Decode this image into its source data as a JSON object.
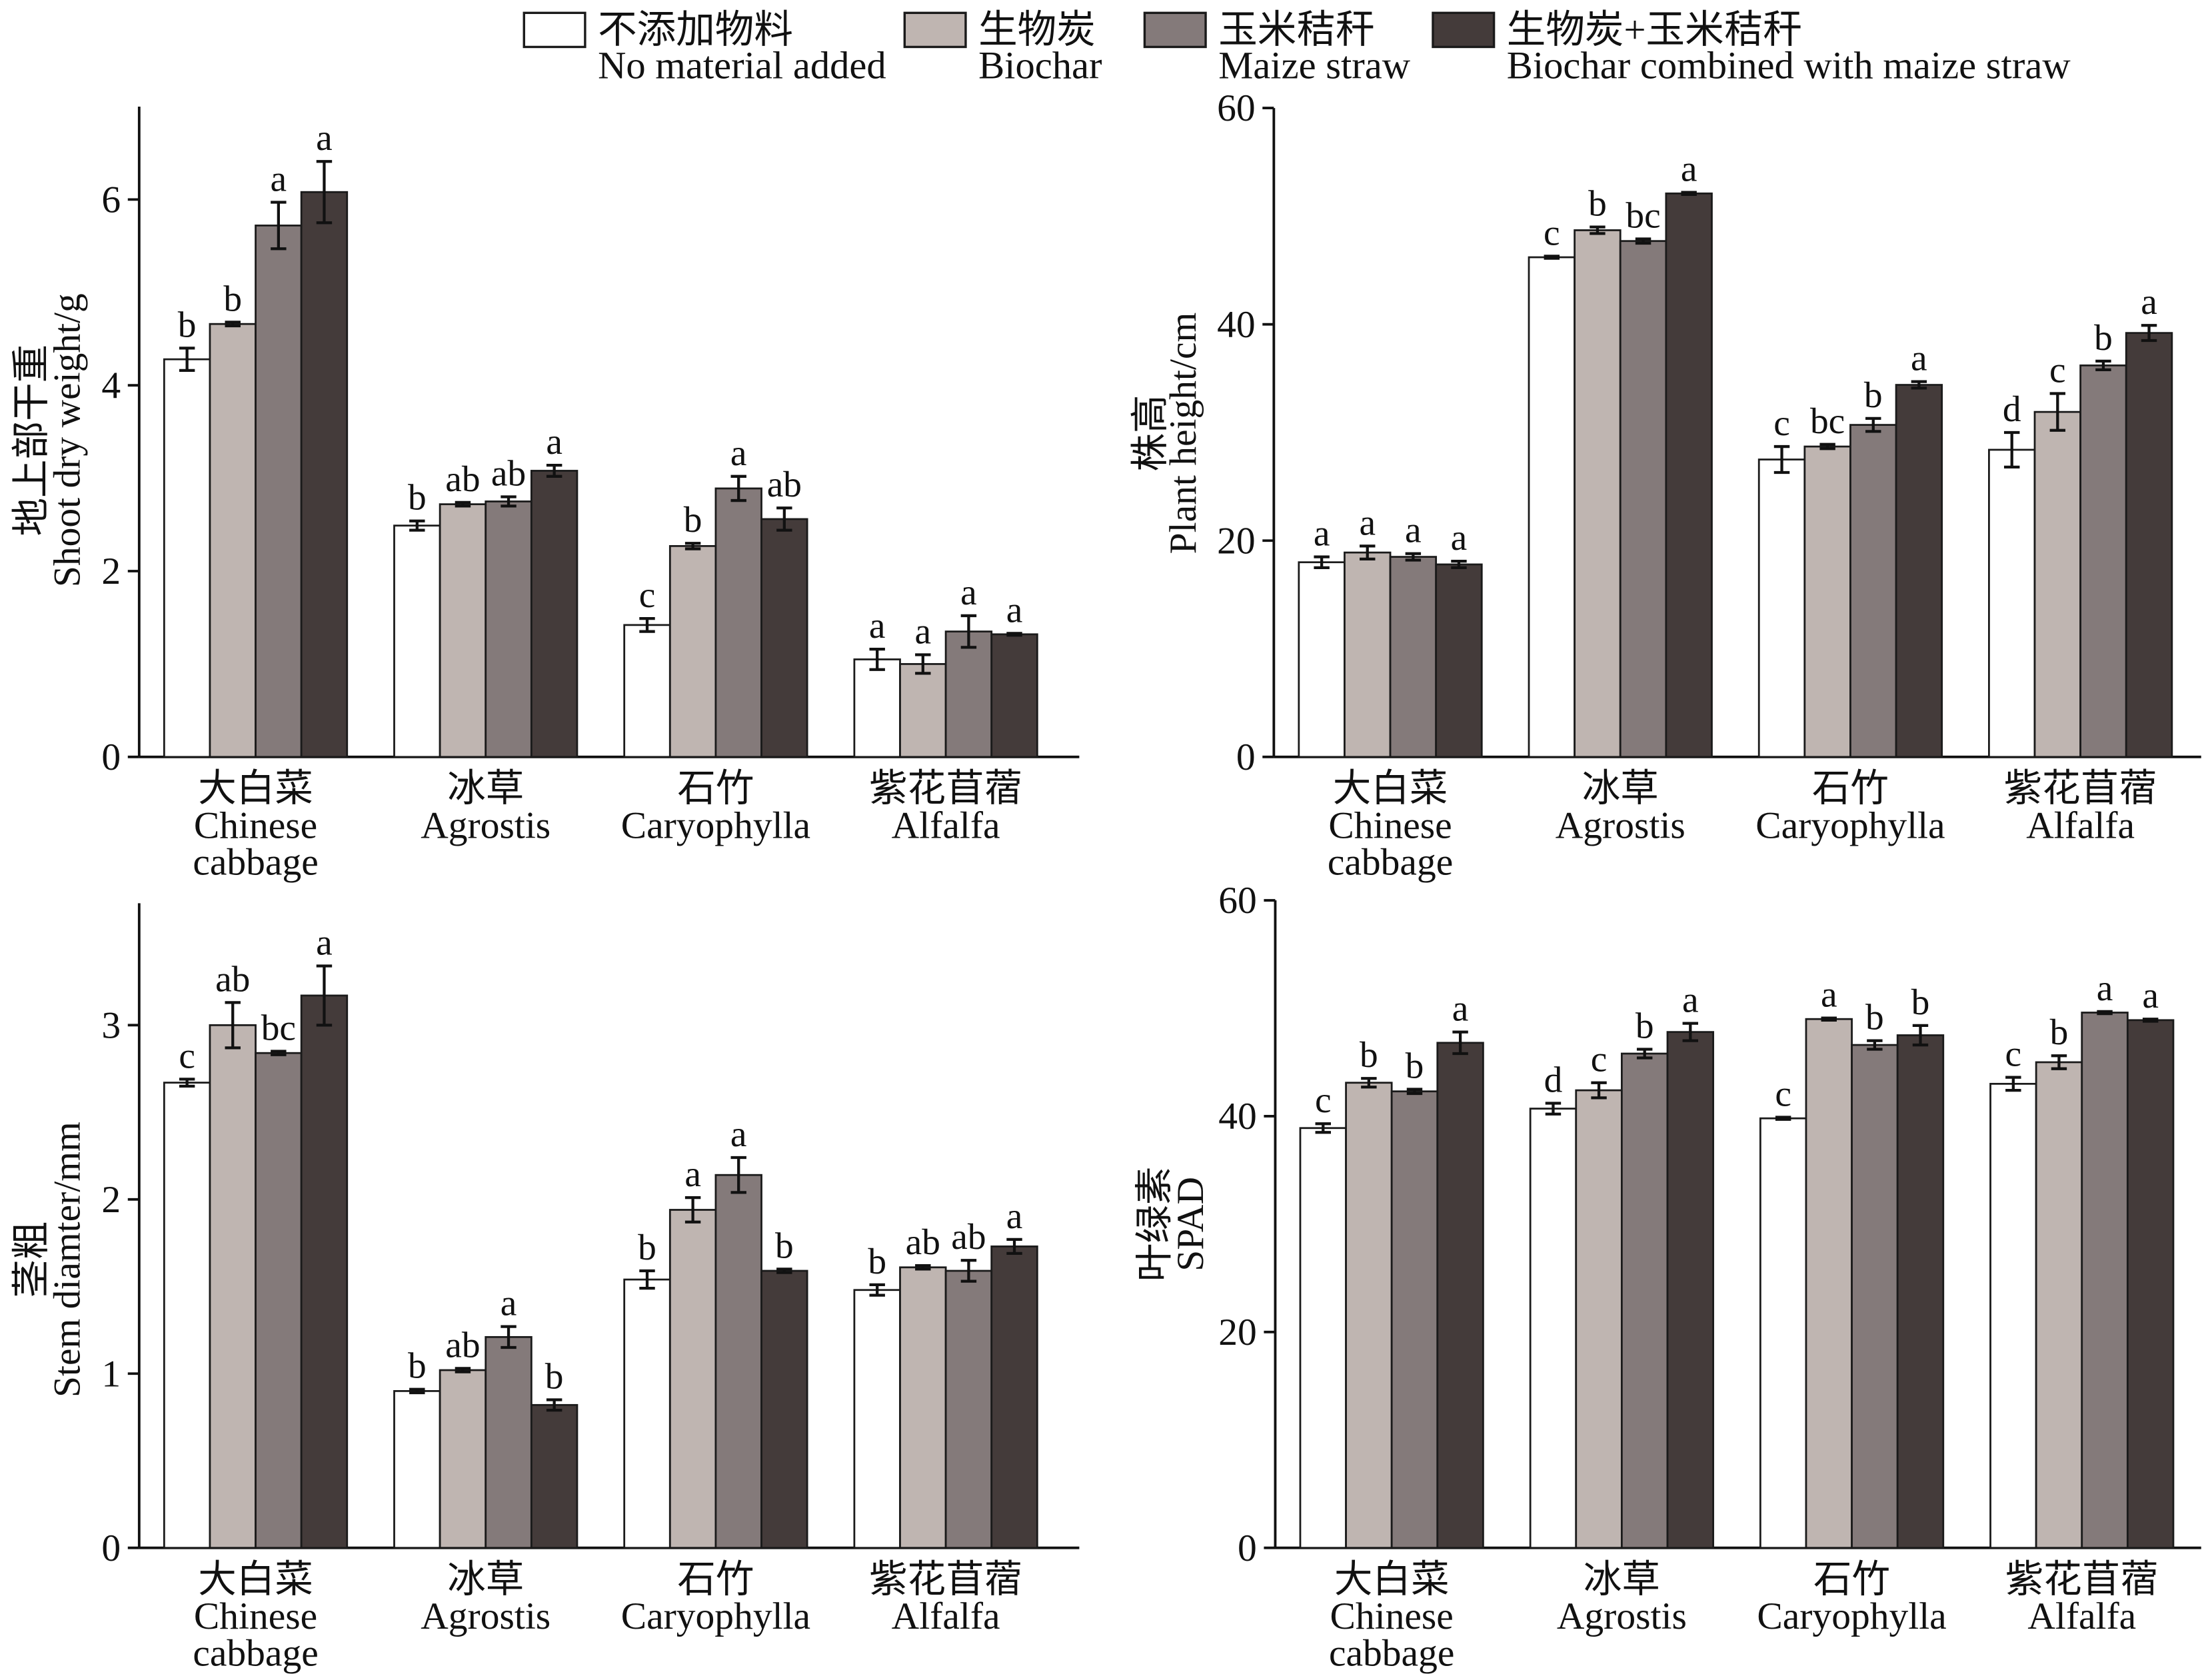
{
  "legend": {
    "position": "top",
    "items": [
      {
        "label_zh": "不添加物料",
        "label_en": "No material added",
        "color": "#ffffff"
      },
      {
        "label_zh": "生物炭",
        "label_en": "Biochar",
        "color": "#bfb5b1"
      },
      {
        "label_zh": "玉米秸秆",
        "label_en": "Maize straw",
        "color": "#847a7a"
      },
      {
        "label_zh": "生物炭+玉米秸秆",
        "label_en": "Biochar combined with maize straw",
        "color": "#443b3a"
      }
    ]
  },
  "chart_data": [
    {
      "type": "bar",
      "ylabel": {
        "zh": "地上部干重",
        "en": "Shoot dry weight/g"
      },
      "ylim": [
        0,
        7
      ],
      "yticks": [
        0,
        2,
        4,
        6
      ],
      "grid": false,
      "categories": [
        {
          "zh": "大白菜",
          "en": [
            "Chinese",
            "cabbage"
          ]
        },
        {
          "zh": "冰草",
          "en": [
            "Agrostis"
          ]
        },
        {
          "zh": "石竹",
          "en": [
            "Caryophylla"
          ]
        },
        {
          "zh": "紫花苜蓿",
          "en": [
            "Alfalfa"
          ]
        }
      ],
      "series": [
        {
          "values": [
            4.28,
            2.49,
            1.42,
            1.05
          ],
          "errors": [
            0.12,
            0.05,
            0.07,
            0.11
          ],
          "letters": [
            "b",
            "b",
            "c",
            "a"
          ]
        },
        {
          "values": [
            4.66,
            2.72,
            2.27,
            1.0
          ],
          "errors": [
            0.02,
            0.02,
            0.03,
            0.1
          ],
          "letters": [
            "b",
            "ab",
            "b",
            "a"
          ]
        },
        {
          "values": [
            5.72,
            2.75,
            2.89,
            1.35
          ],
          "errors": [
            0.25,
            0.05,
            0.13,
            0.17
          ],
          "letters": [
            "a",
            "ab",
            "a",
            "a"
          ]
        },
        {
          "values": [
            6.08,
            3.08,
            2.56,
            1.32
          ],
          "errors": [
            0.33,
            0.06,
            0.12,
            0.01
          ],
          "letters": [
            "a",
            "a",
            "ab",
            "a"
          ]
        }
      ]
    },
    {
      "type": "bar",
      "ylabel": {
        "zh": "株高",
        "en": "Plant height/cm"
      },
      "ylim": [
        0,
        60
      ],
      "yticks": [
        0,
        20,
        40,
        60
      ],
      "grid": false,
      "categories": [
        {
          "zh": "大白菜",
          "en": [
            "Chinese",
            "cabbage"
          ]
        },
        {
          "zh": "冰草",
          "en": [
            "Agrostis"
          ]
        },
        {
          "zh": "石竹",
          "en": [
            "Caryophylla"
          ]
        },
        {
          "zh": "紫花苜蓿",
          "en": [
            "Alfalfa"
          ]
        }
      ],
      "series": [
        {
          "values": [
            18.0,
            46.2,
            27.5,
            28.4
          ],
          "errors": [
            0.5,
            0.1,
            1.2,
            1.6
          ],
          "letters": [
            "a",
            "c",
            "c",
            "d"
          ]
        },
        {
          "values": [
            18.9,
            48.7,
            28.7,
            31.9
          ],
          "errors": [
            0.6,
            0.3,
            0.2,
            1.7
          ],
          "letters": [
            "a",
            "b",
            "bc",
            "c"
          ]
        },
        {
          "values": [
            18.5,
            47.7,
            30.7,
            36.2
          ],
          "errors": [
            0.3,
            0.2,
            0.6,
            0.4
          ],
          "letters": [
            "a",
            "bc",
            "b",
            "b"
          ]
        },
        {
          "values": [
            17.8,
            52.1,
            34.4,
            39.2
          ],
          "errors": [
            0.3,
            0.1,
            0.3,
            0.7
          ],
          "letters": [
            "a",
            "a",
            "a",
            "a"
          ]
        }
      ]
    },
    {
      "type": "bar",
      "ylabel": {
        "zh": "茎粗",
        "en": "Stem diamter/mm"
      },
      "ylim": [
        0,
        3.7
      ],
      "yticks": [
        0,
        1,
        2,
        3
      ],
      "grid": false,
      "categories": [
        {
          "zh": "大白菜",
          "en": [
            "Chinese",
            "cabbage"
          ]
        },
        {
          "zh": "冰草",
          "en": [
            "Agrostis"
          ]
        },
        {
          "zh": "石竹",
          "en": [
            "Caryophylla"
          ]
        },
        {
          "zh": "紫花苜蓿",
          "en": [
            "Alfalfa"
          ]
        }
      ],
      "series": [
        {
          "values": [
            2.67,
            0.9,
            1.54,
            1.48
          ],
          "errors": [
            0.02,
            0.01,
            0.05,
            0.03
          ],
          "letters": [
            "c",
            "b",
            "b",
            "b"
          ]
        },
        {
          "values": [
            3.0,
            1.02,
            1.94,
            1.61
          ],
          "errors": [
            0.13,
            0.01,
            0.07,
            0.01
          ],
          "letters": [
            "ab",
            "ab",
            "a",
            "ab"
          ]
        },
        {
          "values": [
            2.84,
            1.21,
            2.14,
            1.59
          ],
          "errors": [
            0.01,
            0.06,
            0.1,
            0.06
          ],
          "letters": [
            "bc",
            "a",
            "a",
            "ab"
          ]
        },
        {
          "values": [
            3.17,
            0.82,
            1.59,
            1.73
          ],
          "errors": [
            0.17,
            0.03,
            0.01,
            0.04
          ],
          "letters": [
            "a",
            "b",
            "b",
            "a"
          ]
        }
      ]
    },
    {
      "type": "bar",
      "ylabel": {
        "zh": "叶绿素",
        "en": "SPAD"
      },
      "ylim": [
        0,
        60
      ],
      "yticks": [
        0,
        20,
        40,
        60
      ],
      "grid": false,
      "categories": [
        {
          "zh": "大白菜",
          "en": [
            "Chinese",
            "cabbage"
          ]
        },
        {
          "zh": "冰草",
          "en": [
            "Agrostis"
          ]
        },
        {
          "zh": "石竹",
          "en": [
            "Caryophylla"
          ]
        },
        {
          "zh": "紫花苜蓿",
          "en": [
            "Alfalfa"
          ]
        }
      ],
      "series": [
        {
          "values": [
            38.9,
            40.7,
            39.8,
            43.0
          ],
          "errors": [
            0.4,
            0.5,
            0.1,
            0.6
          ],
          "letters": [
            "c",
            "d",
            "c",
            "c"
          ]
        },
        {
          "values": [
            43.1,
            42.4,
            49.0,
            45.0
          ],
          "errors": [
            0.4,
            0.7,
            0.1,
            0.6
          ],
          "letters": [
            "b",
            "c",
            "a",
            "b"
          ]
        },
        {
          "values": [
            42.3,
            45.8,
            46.6,
            49.6
          ],
          "errors": [
            0.2,
            0.4,
            0.4,
            0.1
          ],
          "letters": [
            "b",
            "b",
            "b",
            "a"
          ]
        },
        {
          "values": [
            46.8,
            47.8,
            47.5,
            48.9
          ],
          "errors": [
            1.0,
            0.8,
            0.9,
            0.1
          ],
          "letters": [
            "a",
            "a",
            "b",
            "a"
          ]
        }
      ]
    }
  ]
}
